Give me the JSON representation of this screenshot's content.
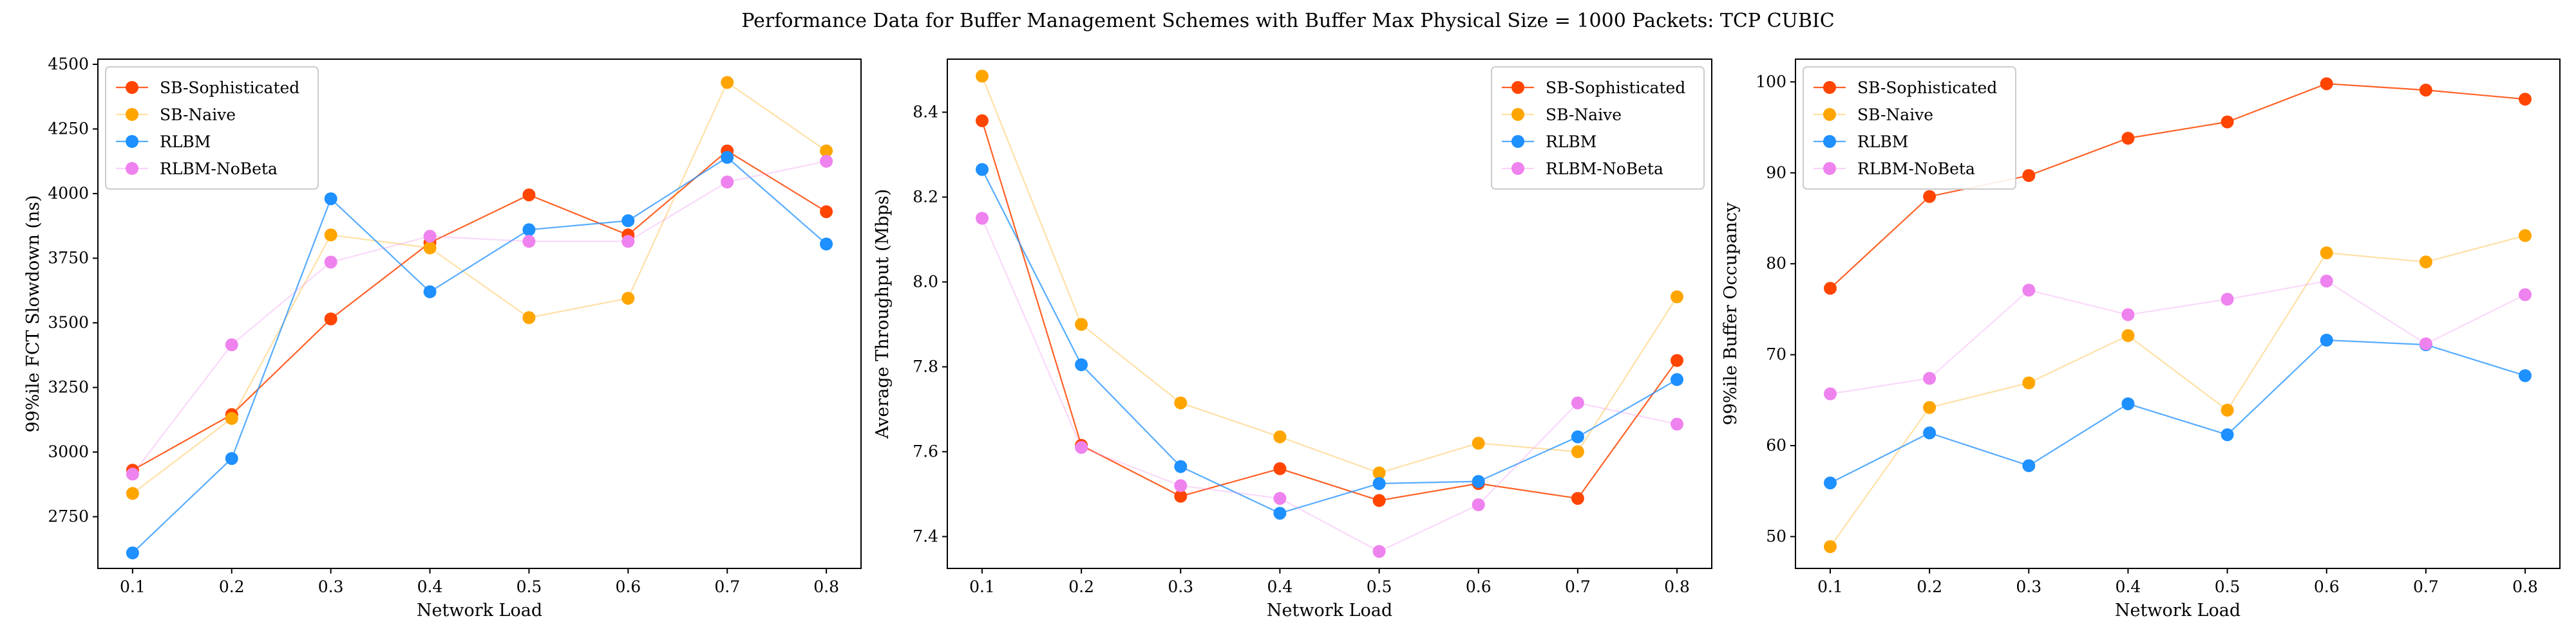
{
  "figure": {
    "title": "Performance Data for Buffer Management Schemes with Buffer Max Physical Size = 1000 Packets: TCP CUBIC"
  },
  "series_styles": [
    {
      "name": "SB-Sophisticated",
      "color": "#ff4500"
    },
    {
      "name": "SB-Naive",
      "color": "#ffa500"
    },
    {
      "name": "RLBM",
      "color": "#1e90ff"
    },
    {
      "name": "RLBM-NoBeta",
      "color": "#ee82ee"
    }
  ],
  "chart_data": [
    {
      "type": "line",
      "xlabel": "Network Load",
      "ylabel": "99%ile FCT Slowdown (ns)",
      "x": [
        0.1,
        0.2,
        0.3,
        0.4,
        0.5,
        0.6,
        0.7,
        0.8
      ],
      "x_ticks": [
        "0.1",
        "0.2",
        "0.3",
        "0.4",
        "0.5",
        "0.6",
        "0.7",
        "0.8"
      ],
      "xlim": [
        0.065,
        0.835
      ],
      "ylim": [
        2550,
        4520
      ],
      "y_ticks": [
        2750,
        3000,
        3250,
        3500,
        3750,
        4000,
        4250,
        4500
      ],
      "legend": "upper-left",
      "series": [
        {
          "name": "SB-Sophisticated",
          "values": [
            2930,
            3145,
            3515,
            3810,
            3995,
            3840,
            4165,
            3930
          ]
        },
        {
          "name": "SB-Naive",
          "values": [
            2840,
            3130,
            3840,
            3790,
            3520,
            3595,
            4430,
            4165
          ]
        },
        {
          "name": "RLBM",
          "values": [
            2610,
            2975,
            3980,
            3620,
            3860,
            3895,
            4140,
            3805
          ]
        },
        {
          "name": "RLBM-NoBeta",
          "values": [
            2915,
            3415,
            3735,
            3835,
            3815,
            3815,
            4045,
            4125
          ]
        }
      ]
    },
    {
      "type": "line",
      "xlabel": "Network Load",
      "ylabel": "Average Throughput (Mbps)",
      "x": [
        0.1,
        0.2,
        0.3,
        0.4,
        0.5,
        0.6,
        0.7,
        0.8
      ],
      "x_ticks": [
        "0.1",
        "0.2",
        "0.3",
        "0.4",
        "0.5",
        "0.6",
        "0.7",
        "0.8"
      ],
      "xlim": [
        0.065,
        0.835
      ],
      "ylim": [
        7.325,
        8.525
      ],
      "y_ticks": [
        7.4,
        7.6,
        7.8,
        8.0,
        8.2,
        8.4
      ],
      "legend": "upper-right",
      "series": [
        {
          "name": "SB-Sophisticated",
          "values": [
            8.38,
            7.615,
            7.495,
            7.56,
            7.485,
            7.525,
            7.49,
            7.815
          ]
        },
        {
          "name": "SB-Naive",
          "values": [
            8.485,
            7.9,
            7.715,
            7.635,
            7.55,
            7.62,
            7.6,
            7.965
          ]
        },
        {
          "name": "RLBM",
          "values": [
            8.265,
            7.805,
            7.565,
            7.455,
            7.525,
            7.53,
            7.635,
            7.77
          ]
        },
        {
          "name": "RLBM-NoBeta",
          "values": [
            8.15,
            7.61,
            7.52,
            7.49,
            7.365,
            7.475,
            7.715,
            7.665
          ]
        }
      ]
    },
    {
      "type": "line",
      "xlabel": "Network Load",
      "ylabel": "99%ile Buffer Occupancy",
      "x": [
        0.1,
        0.2,
        0.3,
        0.4,
        0.5,
        0.6,
        0.7,
        0.8
      ],
      "x_ticks": [
        "0.1",
        "0.2",
        "0.3",
        "0.4",
        "0.5",
        "0.6",
        "0.7",
        "0.8"
      ],
      "xlim": [
        0.065,
        0.835
      ],
      "ylim": [
        46.5,
        102.5
      ],
      "y_ticks": [
        50,
        60,
        70,
        80,
        90,
        100
      ],
      "legend": "upper-left",
      "series": [
        {
          "name": "SB-Sophisticated",
          "values": [
            77.3,
            87.4,
            89.7,
            93.8,
            95.6,
            99.8,
            99.1,
            98.1
          ]
        },
        {
          "name": "SB-Naive",
          "values": [
            48.9,
            64.2,
            66.9,
            72.1,
            63.9,
            81.2,
            80.2,
            83.1
          ]
        },
        {
          "name": "RLBM",
          "values": [
            55.9,
            61.4,
            57.8,
            64.6,
            61.2,
            71.6,
            71.1,
            67.7
          ]
        },
        {
          "name": "RLBM-NoBeta",
          "values": [
            65.7,
            67.4,
            77.1,
            74.4,
            76.1,
            78.1,
            71.2,
            76.6
          ]
        }
      ]
    }
  ]
}
